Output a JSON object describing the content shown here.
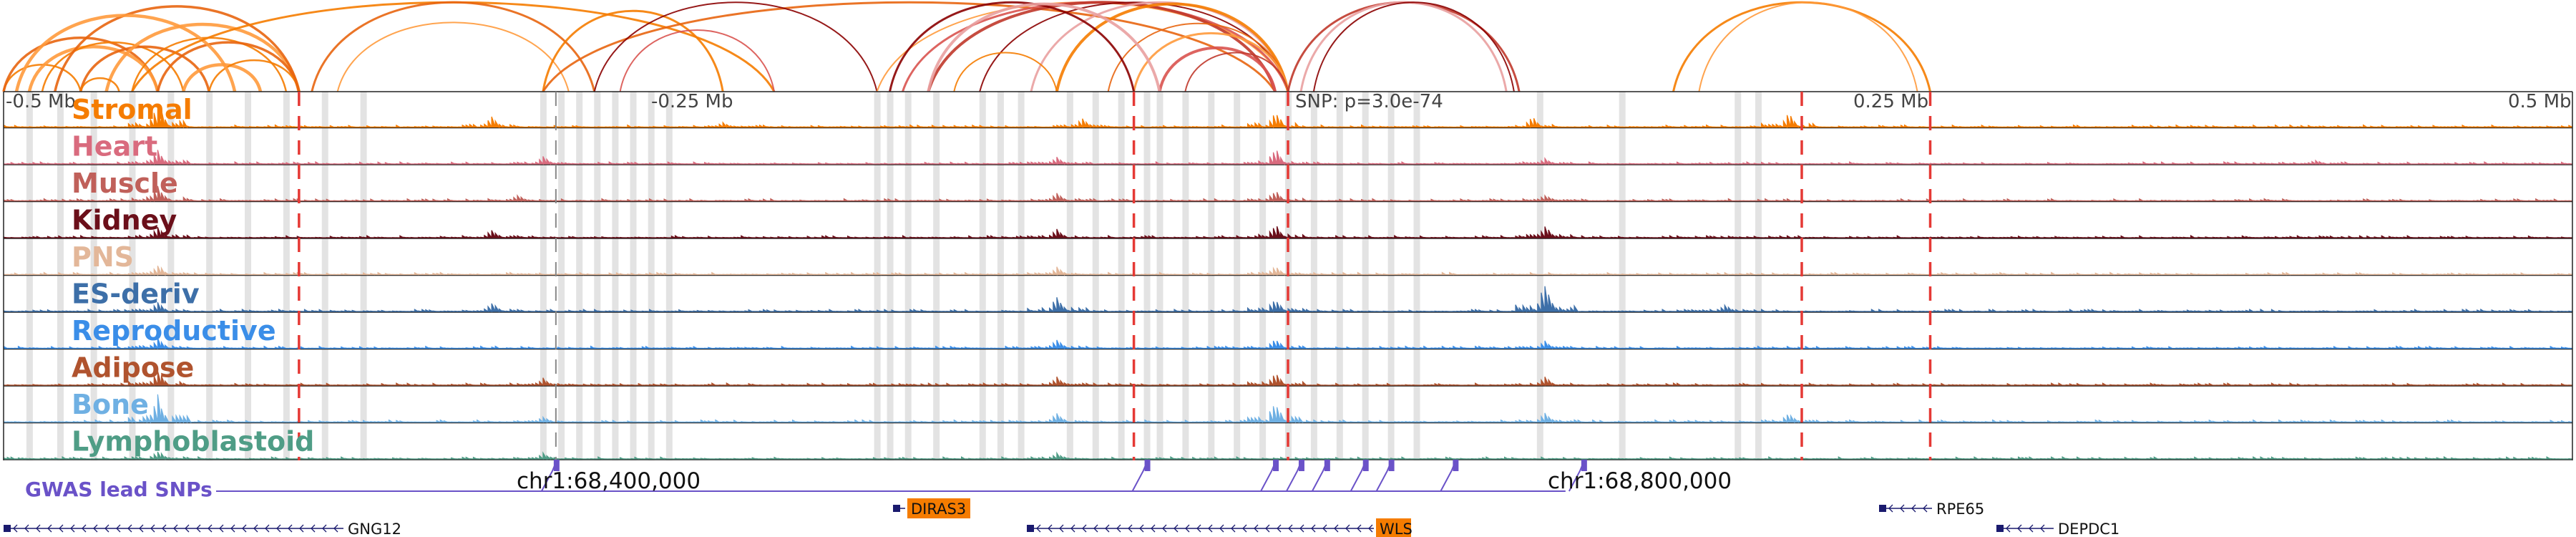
{
  "colors": {
    "arc_palette": [
      "#f57c00",
      "#e8650f",
      "#ff9a3c",
      "#d9534f",
      "#c0392b",
      "#8b0000",
      "#e9a0a0"
    ],
    "highlight": "#d9d9d9",
    "tad_boundary": "#e53935",
    "gwas": "#6a52c8",
    "gene": "#1a1a6e",
    "gene_highlight_bg": "#f57c00"
  },
  "mb_labels": [
    "-0.5 Mb",
    "-0.25 Mb",
    "0.25 Mb",
    "0.5 Mb"
  ],
  "snp_label": "SNP: p=3.0e-74",
  "coordinates": [
    "chr1:68,400,000",
    "chr1:68,800,000"
  ],
  "gwas_label": "GWAS lead SNPs",
  "genes": [
    {
      "name": "GNG12",
      "icon": "gene-arrow-left-icon",
      "highlighted": false
    },
    {
      "name": "DIRAS3",
      "icon": "gene-arrow-left-icon",
      "highlighted": true
    },
    {
      "name": "WLS",
      "icon": "gene-arrow-left-icon",
      "highlighted": true
    },
    {
      "name": "RPE65",
      "icon": "gene-arrow-left-icon",
      "highlighted": false
    },
    {
      "name": "DEPDC1",
      "icon": "gene-arrow-left-icon",
      "highlighted": false
    }
  ],
  "chart_data": {
    "type": "area",
    "x_unit": "Mb relative to lead SNP",
    "x_range": [
      -0.5,
      0.5
    ],
    "tracks": [
      {
        "name": "Stromal",
        "color": "#f57c00",
        "peaks": [
          [
            -0.44,
            0.9
          ],
          [
            -0.31,
            0.35
          ],
          [
            -0.22,
            0.15
          ],
          [
            -0.08,
            0.3
          ],
          [
            -0.005,
            0.55
          ],
          [
            0.095,
            0.35
          ],
          [
            0.195,
            0.5
          ]
        ]
      },
      {
        "name": "Heart",
        "color": "#d96b7e",
        "peaks": [
          [
            -0.44,
            0.5
          ],
          [
            -0.29,
            0.25
          ],
          [
            -0.09,
            0.25
          ],
          [
            -0.005,
            0.55
          ],
          [
            0.1,
            0.2
          ],
          [
            0.4,
            0.15
          ]
        ]
      },
      {
        "name": "Muscle",
        "color": "#c0605a",
        "peaks": [
          [
            -0.44,
            0.55
          ],
          [
            -0.3,
            0.2
          ],
          [
            -0.09,
            0.25
          ],
          [
            -0.005,
            0.35
          ],
          [
            0.1,
            0.2
          ]
        ]
      },
      {
        "name": "Kidney",
        "color": "#6b0f1a",
        "peaks": [
          [
            -0.44,
            0.4
          ],
          [
            -0.31,
            0.3
          ],
          [
            -0.09,
            0.3
          ],
          [
            -0.005,
            0.45
          ],
          [
            0.1,
            0.4
          ]
        ]
      },
      {
        "name": "PNS",
        "color": "#e3b799",
        "peaks": [
          [
            -0.44,
            0.35
          ],
          [
            -0.09,
            0.25
          ],
          [
            -0.005,
            0.3
          ]
        ]
      },
      {
        "name": "ES-deriv",
        "color": "#3d6fa8",
        "peaks": [
          [
            -0.44,
            0.3
          ],
          [
            -0.31,
            0.3
          ],
          [
            -0.09,
            0.5
          ],
          [
            -0.005,
            0.45
          ],
          [
            0.1,
            0.95
          ],
          [
            0.17,
            0.25
          ]
        ]
      },
      {
        "name": "Reproductive",
        "color": "#3b8ee8",
        "peaks": [
          [
            -0.44,
            0.35
          ],
          [
            -0.09,
            0.3
          ],
          [
            -0.005,
            0.35
          ],
          [
            0.1,
            0.25
          ]
        ]
      },
      {
        "name": "Adipose",
        "color": "#b0532e",
        "peaks": [
          [
            -0.44,
            0.5
          ],
          [
            -0.29,
            0.25
          ],
          [
            -0.09,
            0.3
          ],
          [
            -0.005,
            0.45
          ],
          [
            0.1,
            0.3
          ]
        ]
      },
      {
        "name": "Bone",
        "color": "#6fb0e3",
        "peaks": [
          [
            -0.44,
            0.9
          ],
          [
            -0.29,
            0.2
          ],
          [
            -0.09,
            0.3
          ],
          [
            -0.005,
            0.75
          ],
          [
            0.1,
            0.3
          ],
          [
            0.195,
            0.3
          ]
        ]
      },
      {
        "name": "Lymphoblastoid",
        "color": "#4f9d86",
        "peaks": [
          [
            -0.44,
            0.3
          ],
          [
            -0.29,
            0.2
          ],
          [
            -0.09,
            0.2
          ]
        ]
      }
    ]
  }
}
